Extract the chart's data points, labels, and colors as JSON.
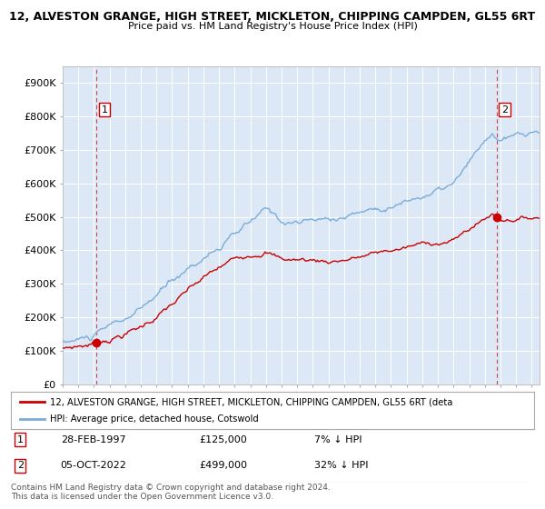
{
  "title1": "12, ALVESTON GRANGE, HIGH STREET, MICKLETON, CHIPPING CAMPDEN, GL55 6RT",
  "title2": "Price paid vs. HM Land Registry's House Price Index (HPI)",
  "xlim_start": 1995.0,
  "xlim_end": 2025.5,
  "ylim": [
    0,
    950000
  ],
  "yticks": [
    0,
    100000,
    200000,
    300000,
    400000,
    500000,
    600000,
    700000,
    800000,
    900000
  ],
  "ytick_labels": [
    "£0",
    "£100K",
    "£200K",
    "£300K",
    "£400K",
    "£500K",
    "£600K",
    "£700K",
    "£800K",
    "£900K"
  ],
  "plot_bg_color": "#dce8f5",
  "grid_color": "#ffffff",
  "transaction1_x": 1997.16,
  "transaction1_y": 125000,
  "transaction1_label": "1",
  "transaction1_date": "28-FEB-1997",
  "transaction1_price": "£125,000",
  "transaction1_hpi": "7% ↓ HPI",
  "transaction2_x": 2022.76,
  "transaction2_y": 499000,
  "transaction2_label": "2",
  "transaction2_date": "05-OCT-2022",
  "transaction2_price": "£499,000",
  "transaction2_hpi": "32% ↓ HPI",
  "legend_line1": "12, ALVESTON GRANGE, HIGH STREET, MICKLETON, CHIPPING CAMPDEN, GL55 6RT (deta",
  "legend_line2": "HPI: Average price, detached house, Cotswold",
  "footer1": "Contains HM Land Registry data © Crown copyright and database right 2024.",
  "footer2": "This data is licensed under the Open Government Licence v3.0.",
  "line_color_property": "#cc0000",
  "line_color_hpi": "#7aaddb",
  "dot_color": "#cc0000",
  "vline_color": "#cc0000"
}
